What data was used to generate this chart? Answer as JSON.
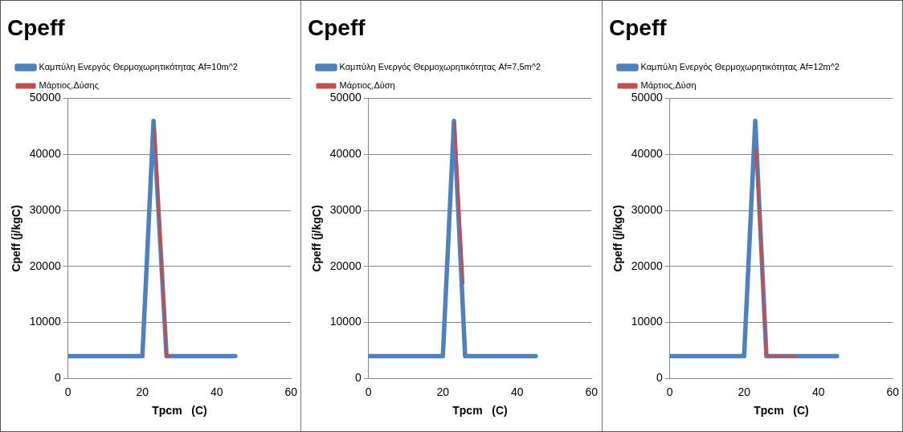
{
  "chart_data": [
    {
      "type": "line",
      "title": "Cpeff",
      "xlabel": "Tpcm   (C)",
      "ylabel": "Cpeff (j/kgC)",
      "xlim": [
        0,
        60
      ],
      "xticks": [
        0,
        20,
        40,
        60
      ],
      "ylim": [
        0,
        50000
      ],
      "yticks": [
        0,
        10000,
        20000,
        30000,
        40000,
        50000
      ],
      "grid": "y",
      "legend": "top left",
      "marker": "none",
      "series": [
        {
          "name": "Καμπύλη Ενεργός Θερμοχωρητικότητας Af=10m^2",
          "color": "#4f81bd",
          "x": [
            0,
            20,
            23,
            26.5,
            45
          ],
          "values": [
            4000,
            4000,
            46000,
            4000,
            4000
          ]
        },
        {
          "name": "Μάρτιος,Δύσης",
          "color": "#c0504d",
          "x": [
            23.3,
            26.5,
            27.5
          ],
          "values": [
            44500,
            4000,
            4000
          ]
        }
      ]
    },
    {
      "type": "line",
      "title": "Cpeff",
      "xlabel": "Tpcm   (C)",
      "ylabel": "Cpeff (j/kgC)",
      "xlim": [
        0,
        60
      ],
      "xticks": [
        0,
        20,
        40,
        60
      ],
      "ylim": [
        0,
        50000
      ],
      "yticks": [
        0,
        10000,
        20000,
        30000,
        40000,
        50000
      ],
      "grid": "y",
      "legend": "top left",
      "marker": "none",
      "series": [
        {
          "name": "Καμπύλη Ενεργός Θερμοχωρητικότητας Af=7,5m^2",
          "color": "#4f81bd",
          "x": [
            0,
            20,
            23,
            26,
            45
          ],
          "values": [
            4000,
            4000,
            46000,
            4000,
            4000
          ]
        },
        {
          "name": "Μάρτιος,Δύση",
          "color": "#c0504d",
          "x": [
            23.2,
            25.5
          ],
          "values": [
            45500,
            17000
          ]
        }
      ]
    },
    {
      "type": "line",
      "title": "Cpeff",
      "xlabel": "Tpcm   (C)",
      "ylabel": "Cpeff (j/kgC)",
      "xlim": [
        0,
        60
      ],
      "xticks": [
        0,
        20,
        40,
        60
      ],
      "ylim": [
        0,
        50000
      ],
      "yticks": [
        0,
        10000,
        20000,
        30000,
        40000,
        50000
      ],
      "grid": "y",
      "legend": "top left",
      "marker": "none",
      "series": [
        {
          "name": "Καμπύλη Ενεργός Θερμοχωρητικότητας Af=12m^2",
          "color": "#4f81bd",
          "x": [
            0,
            20,
            23,
            26,
            45
          ],
          "values": [
            4000,
            4000,
            46000,
            4000,
            4000
          ]
        },
        {
          "name": "Μάρτιος,Δύση",
          "color": "#c0504d",
          "x": [
            23.2,
            26,
            34
          ],
          "values": [
            41000,
            4000,
            4000
          ]
        }
      ]
    }
  ]
}
